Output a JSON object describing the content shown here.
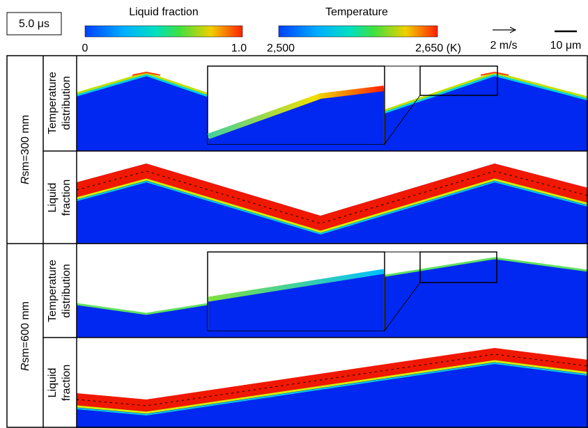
{
  "header": {
    "time": "5.0 μs",
    "colorbars": [
      {
        "title": "Liquid fraction",
        "min": "0",
        "max": "1.0"
      },
      {
        "title": "Temperature",
        "min": "2,500",
        "max": "2,650 (K)"
      }
    ],
    "velocity_scale": "2 m/s",
    "length_scale": "10 μm"
  },
  "rows": [
    {
      "group": {
        "italic": "R",
        "label": "sm=300 mm"
      },
      "panels": [
        {
          "lines": [
            "Temperature",
            "distribution"
          ]
        },
        {
          "lines": [
            "Liquid",
            "fraction"
          ]
        }
      ]
    },
    {
      "group": {
        "italic": "R",
        "label": "sm=600 mm"
      },
      "panels": [
        {
          "lines": [
            "Temperature",
            "distribution"
          ]
        },
        {
          "lines": [
            "Liquid",
            "fraction"
          ]
        }
      ]
    }
  ]
}
